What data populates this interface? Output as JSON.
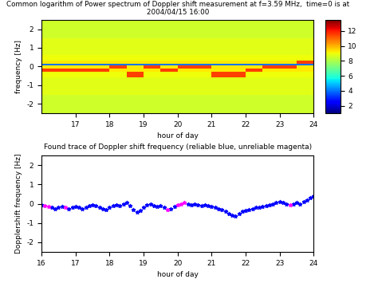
{
  "chart_data": [
    {
      "type": "heatmap",
      "title": "Common logarithm of Power spectrum of Doppler shift measurement at f=3.59 MHz,  time=0 is at 2004/04/15 16:00",
      "x_label": "hour of day",
      "y_label": "frequency [Hz]",
      "xlim": [
        16,
        24
      ],
      "xticks": [
        17,
        18,
        19,
        20,
        21,
        22,
        23,
        24
      ],
      "ylim": [
        -2.5,
        2.5
      ],
      "yticks": [
        -2,
        -1,
        0,
        1,
        2
      ],
      "x_edges": [
        16,
        16.5,
        17,
        17.5,
        18,
        18.5,
        19,
        19.5,
        20,
        20.5,
        21,
        21.5,
        22,
        22.5,
        23,
        23.5,
        24
      ],
      "y_edges": [
        -2.5,
        -2,
        -1.5,
        -1,
        -0.6,
        -0.3,
        -0.1,
        0.05,
        0.15,
        0.3,
        0.6,
        1,
        1.5,
        2,
        2.5
      ],
      "cells": [
        [
          8.5,
          8.5,
          8.5,
          8.5,
          8.5,
          8.5,
          8.5,
          8.5,
          8.5,
          8.5,
          8.5,
          8.5,
          8.5,
          8.5,
          8.5,
          8.5
        ],
        [
          8.5,
          8.5,
          8.5,
          8.5,
          8.5,
          8.5,
          8.5,
          8.5,
          8.5,
          8.5,
          8.5,
          8.5,
          8.5,
          8.5,
          8.5,
          8.5
        ],
        [
          8.8,
          8.8,
          8.8,
          8.8,
          8.8,
          8.8,
          8.8,
          8.8,
          8.8,
          8.8,
          8.8,
          8.8,
          8.8,
          8.8,
          8.8,
          8.8
        ],
        [
          8.8,
          8.8,
          8.8,
          8.8,
          8.8,
          8.8,
          8.8,
          8.8,
          8.8,
          8.8,
          8.8,
          8.8,
          8.8,
          8.8,
          8.8,
          8.8
        ],
        [
          9,
          9,
          9,
          9,
          9,
          11.5,
          9,
          9,
          9,
          9,
          11.5,
          11.5,
          9,
          9,
          9,
          9
        ],
        [
          11.5,
          11.5,
          11.5,
          11.5,
          9.3,
          9.3,
          9.3,
          11.5,
          9.3,
          9.3,
          9.3,
          9.3,
          11.5,
          9.3,
          9.3,
          9.3
        ],
        [
          9.3,
          9.3,
          9.3,
          9.3,
          11.5,
          9.3,
          11.5,
          9.3,
          11.5,
          11.5,
          9.3,
          9.3,
          9.3,
          11.5,
          11.5,
          9.3
        ],
        [
          4,
          4,
          4,
          4,
          4,
          4,
          4,
          4,
          4,
          4,
          4,
          4,
          4,
          4,
          4,
          4
        ],
        [
          9.3,
          9.3,
          9.3,
          9.3,
          9.3,
          9.3,
          9.3,
          9.3,
          9.3,
          9.3,
          9.3,
          9.3,
          9.3,
          9.3,
          9.3,
          11.5
        ],
        [
          9,
          9,
          9,
          9,
          9,
          9,
          9,
          9,
          9,
          9,
          9,
          9,
          9,
          9,
          9,
          9
        ],
        [
          8.8,
          8.8,
          8.8,
          8.8,
          8.8,
          8.8,
          8.8,
          8.8,
          8.8,
          8.8,
          8.8,
          8.8,
          8.8,
          8.8,
          8.8,
          8.8
        ],
        [
          8.8,
          8.8,
          8.8,
          8.8,
          8.8,
          8.8,
          8.8,
          8.8,
          8.8,
          8.8,
          8.8,
          8.8,
          8.8,
          8.8,
          8.8,
          8.8
        ],
        [
          8.5,
          8.5,
          8.5,
          8.5,
          8.5,
          8.5,
          8.5,
          8.5,
          8.5,
          8.5,
          8.5,
          8.5,
          8.5,
          8.5,
          8.5,
          8.5
        ],
        [
          8.5,
          8.5,
          8.5,
          8.5,
          8.5,
          8.5,
          8.5,
          8.5,
          8.5,
          8.5,
          8.5,
          8.5,
          8.5,
          8.5,
          8.5,
          8.5
        ]
      ],
      "colorbar_range": [
        1,
        13.5
      ],
      "colorbar_ticks": [
        2,
        4,
        6,
        8,
        10,
        12
      ]
    },
    {
      "type": "scatter",
      "title": "Found trace of Doppler shift frequency (reliable blue, unreliable magenta)",
      "x_label": "hour of day",
      "y_label": "Dopplershift frequency [Hz]",
      "xlim": [
        16,
        24
      ],
      "xticks": [
        16,
        17,
        18,
        19,
        20,
        21,
        22,
        23,
        24
      ],
      "ylim": [
        -2.5,
        2.5
      ],
      "yticks": [
        -2,
        -1,
        0,
        1,
        2
      ],
      "x": [
        16.0,
        16.1,
        16.2,
        16.3,
        16.4,
        16.5,
        16.6,
        16.7,
        16.8,
        16.9,
        17.0,
        17.1,
        17.2,
        17.3,
        17.4,
        17.5,
        17.6,
        17.7,
        17.8,
        17.9,
        18.0,
        18.1,
        18.2,
        18.3,
        18.4,
        18.5,
        18.6,
        18.7,
        18.8,
        18.9,
        19.0,
        19.1,
        19.2,
        19.3,
        19.4,
        19.5,
        19.6,
        19.7,
        19.8,
        19.9,
        20.0,
        20.1,
        20.2,
        20.3,
        20.4,
        20.5,
        20.6,
        20.7,
        20.8,
        20.9,
        21.0,
        21.1,
        21.2,
        21.3,
        21.4,
        21.5,
        21.6,
        21.7,
        21.8,
        21.9,
        22.0,
        22.1,
        22.2,
        22.3,
        22.4,
        22.5,
        22.6,
        22.7,
        22.8,
        22.9,
        23.0,
        23.1,
        23.2,
        23.3,
        23.4,
        23.5,
        23.6,
        23.7,
        23.8,
        23.9,
        24.0
      ],
      "series": [
        {
          "color": "#0000ff",
          "marker": "*",
          "values": [
            -0.05,
            null,
            null,
            -0.2,
            -0.25,
            -0.2,
            -0.15,
            null,
            -0.25,
            -0.2,
            -0.15,
            -0.2,
            -0.25,
            -0.2,
            -0.1,
            -0.05,
            -0.1,
            -0.2,
            -0.25,
            -0.3,
            -0.2,
            -0.1,
            -0.05,
            -0.1,
            0.0,
            0.05,
            -0.1,
            -0.3,
            -0.45,
            -0.35,
            -0.2,
            -0.05,
            0.0,
            -0.1,
            -0.15,
            -0.1,
            -0.2,
            null,
            -0.25,
            -0.15,
            null,
            null,
            null,
            0.0,
            -0.05,
            0.0,
            -0.05,
            -0.1,
            -0.05,
            -0.1,
            -0.15,
            -0.2,
            -0.25,
            -0.3,
            -0.4,
            -0.5,
            -0.6,
            -0.65,
            -0.5,
            -0.4,
            -0.35,
            -0.3,
            -0.25,
            -0.2,
            -0.2,
            -0.15,
            -0.1,
            -0.05,
            0.0,
            0.05,
            0.1,
            0.05,
            0.0,
            null,
            0.0,
            0.05,
            0.0,
            0.1,
            0.2,
            0.3,
            0.4
          ]
        },
        {
          "color": "#ff00ff",
          "marker": "*",
          "values": [
            null,
            -0.1,
            -0.15,
            null,
            null,
            null,
            null,
            -0.2,
            null,
            null,
            null,
            null,
            null,
            null,
            null,
            null,
            null,
            null,
            null,
            null,
            null,
            null,
            null,
            null,
            null,
            null,
            null,
            null,
            null,
            null,
            null,
            null,
            null,
            null,
            null,
            null,
            null,
            -0.3,
            null,
            null,
            -0.05,
            0.0,
            0.05,
            null,
            null,
            null,
            null,
            null,
            null,
            null,
            null,
            null,
            null,
            null,
            null,
            null,
            null,
            null,
            null,
            null,
            null,
            null,
            null,
            null,
            null,
            null,
            null,
            null,
            null,
            null,
            null,
            null,
            null,
            -0.05,
            null,
            null,
            null,
            null,
            null,
            null,
            null
          ]
        }
      ]
    }
  ]
}
